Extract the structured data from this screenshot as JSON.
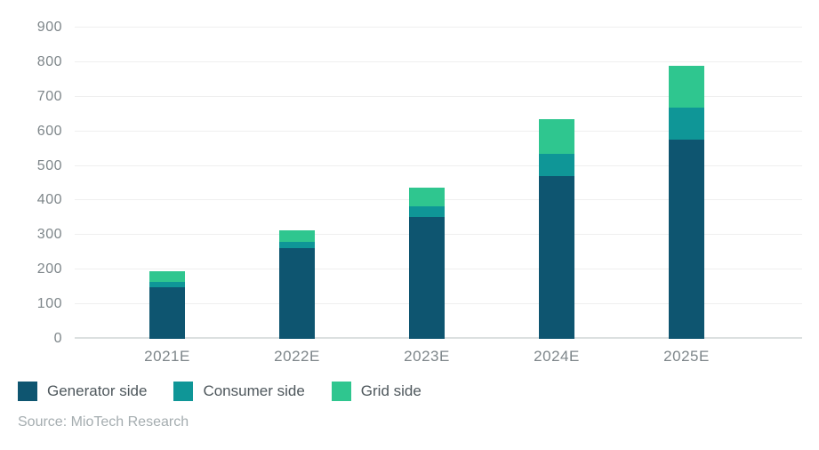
{
  "chart_data": {
    "type": "bar",
    "stacked": true,
    "categories": [
      "2021E",
      "2022E",
      "2023E",
      "2024E",
      "2025E"
    ],
    "series": [
      {
        "name": "Generator side",
        "color": "#0E5570",
        "values": [
          148,
          262,
          352,
          470,
          577
        ]
      },
      {
        "name": "Consumer side",
        "color": "#0F9697",
        "values": [
          17,
          18,
          31,
          65,
          91
        ]
      },
      {
        "name": "Grid side",
        "color": "#2FC68F",
        "values": [
          30,
          33,
          55,
          100,
          122
        ]
      }
    ],
    "ylim": [
      0,
      900
    ],
    "yticks": [
      0,
      100,
      200,
      300,
      400,
      500,
      600,
      700,
      800,
      900
    ],
    "grid": true,
    "legend_position": "bottom-left"
  },
  "legend": {
    "items": [
      {
        "label": "Generator side"
      },
      {
        "label": "Consumer side"
      },
      {
        "label": "Grid side"
      }
    ]
  },
  "source": {
    "text": "Source: MioTech Research"
  },
  "colors": {
    "gridline": "#EFEFEF",
    "baseline": "#DCE0E0",
    "axis_text": "#7E868A",
    "legend_text": "#4E575C",
    "source_text": "#A5ADB0"
  }
}
